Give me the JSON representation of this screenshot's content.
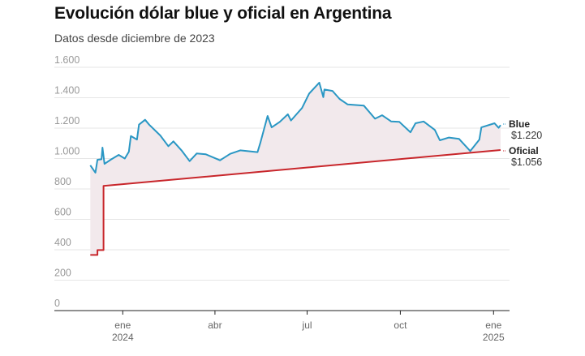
{
  "chart_data": {
    "type": "line",
    "title": "Evolución dólar blue y oficial en Argentina",
    "subtitle": "Datos desde diciembre de 2023",
    "ylim": [
      0,
      1600
    ],
    "yticks": [
      0,
      200,
      400,
      600,
      800,
      1000,
      1200,
      1400,
      1600
    ],
    "ytick_labels": [
      "0",
      "200",
      "400",
      "600",
      "800",
      "1.000",
      "1.200",
      "1.400",
      "1.600"
    ],
    "xticks": [
      {
        "date": "2024-01-01",
        "label": "ene",
        "sub": "2024"
      },
      {
        "date": "2024-04-01",
        "label": "abr",
        "sub": ""
      },
      {
        "date": "2024-07-01",
        "label": "jul",
        "sub": ""
      },
      {
        "date": "2024-10-01",
        "label": "oct",
        "sub": ""
      },
      {
        "date": "2025-01-01",
        "label": "ene",
        "sub": "2025"
      }
    ],
    "grid": true,
    "series": [
      {
        "name": "Blue",
        "end_label": "$1.220",
        "color": "#2a97c4",
        "points": [
          [
            "2023-11-30",
            956
          ],
          [
            "2023-12-05",
            907
          ],
          [
            "2023-12-07",
            992
          ],
          [
            "2023-12-11",
            995
          ],
          [
            "2023-12-12",
            1072
          ],
          [
            "2023-12-14",
            965
          ],
          [
            "2023-12-20",
            992
          ],
          [
            "2023-12-28",
            1024
          ],
          [
            "2024-01-03",
            1000
          ],
          [
            "2024-01-07",
            1045
          ],
          [
            "2024-01-09",
            1148
          ],
          [
            "2024-01-15",
            1125
          ],
          [
            "2024-01-17",
            1223
          ],
          [
            "2024-01-23",
            1255
          ],
          [
            "2024-01-27",
            1223
          ],
          [
            "2024-02-07",
            1152
          ],
          [
            "2024-02-15",
            1081
          ],
          [
            "2024-02-20",
            1113
          ],
          [
            "2024-02-28",
            1054
          ],
          [
            "2024-03-07",
            983
          ],
          [
            "2024-03-14",
            1033
          ],
          [
            "2024-03-23",
            1028
          ],
          [
            "2024-04-06",
            988
          ],
          [
            "2024-04-16",
            1031
          ],
          [
            "2024-04-26",
            1054
          ],
          [
            "2024-05-13",
            1042
          ],
          [
            "2024-05-16",
            1108
          ],
          [
            "2024-05-23",
            1280
          ],
          [
            "2024-05-27",
            1205
          ],
          [
            "2024-06-04",
            1241
          ],
          [
            "2024-06-12",
            1291
          ],
          [
            "2024-06-15",
            1250
          ],
          [
            "2024-06-26",
            1333
          ],
          [
            "2024-07-03",
            1427
          ],
          [
            "2024-07-13",
            1499
          ],
          [
            "2024-07-17",
            1404
          ],
          [
            "2024-07-18",
            1454
          ],
          [
            "2024-07-26",
            1445
          ],
          [
            "2024-08-02",
            1392
          ],
          [
            "2024-08-10",
            1356
          ],
          [
            "2024-08-26",
            1348
          ],
          [
            "2024-09-06",
            1262
          ],
          [
            "2024-09-13",
            1285
          ],
          [
            "2024-09-22",
            1244
          ],
          [
            "2024-09-30",
            1241
          ],
          [
            "2024-10-11",
            1173
          ],
          [
            "2024-10-16",
            1232
          ],
          [
            "2024-10-24",
            1244
          ],
          [
            "2024-11-04",
            1188
          ],
          [
            "2024-11-09",
            1120
          ],
          [
            "2024-11-18",
            1138
          ],
          [
            "2024-11-28",
            1129
          ],
          [
            "2024-12-09",
            1049
          ],
          [
            "2024-12-18",
            1125
          ],
          [
            "2024-12-20",
            1205
          ],
          [
            "2025-01-02",
            1232
          ],
          [
            "2025-01-06",
            1202
          ],
          [
            "2025-01-08",
            1220
          ]
        ]
      },
      {
        "name": "Oficial",
        "end_label": "$1.056",
        "color": "#c8262b",
        "points": [
          [
            "2023-11-30",
            366
          ],
          [
            "2023-12-06",
            366
          ],
          [
            "2023-12-07",
            398
          ],
          [
            "2023-12-12",
            398
          ],
          [
            "2023-12-13",
            820
          ],
          [
            "2025-01-08",
            1056
          ]
        ]
      }
    ],
    "fill_between_color": "#f2e9ec"
  }
}
